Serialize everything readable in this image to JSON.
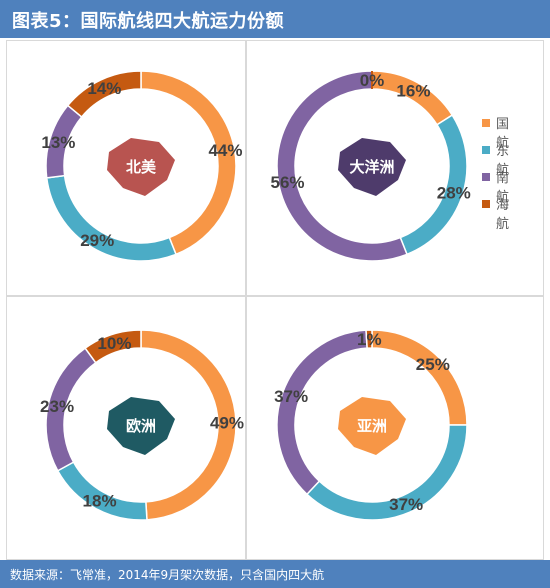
{
  "header": {
    "title": "图表5：国际航线四大航运力份额"
  },
  "footer": {
    "source": "数据来源：飞常准，2014年9月架次数据，只含国内四大航"
  },
  "colors": {
    "国航": "#f79646",
    "东航": "#4bacc6",
    "南航": "#8064a2",
    "海航": "#c55a11",
    "header_bg": "#4f81bd",
    "label_text": "#404040"
  },
  "legend": [
    "国航",
    "东航",
    "南航",
    "海航"
  ],
  "chart_data": [
    {
      "type": "pie",
      "region": "北美",
      "categories": [
        "国航",
        "东航",
        "南航",
        "海航"
      ],
      "values": [
        44,
        29,
        13,
        14
      ],
      "labels": [
        "44%",
        "29%",
        "13%",
        "14%"
      ]
    },
    {
      "type": "pie",
      "region": "大洋洲",
      "categories": [
        "国航",
        "东航",
        "南航",
        "海航"
      ],
      "values": [
        16,
        28,
        56,
        0
      ],
      "labels": [
        "16%",
        "28%",
        "56%",
        "0%"
      ]
    },
    {
      "type": "pie",
      "region": "欧洲",
      "categories": [
        "国航",
        "东航",
        "南航",
        "海航"
      ],
      "values": [
        49,
        18,
        23,
        10
      ],
      "labels": [
        "49%",
        "18%",
        "23%",
        "10%"
      ]
    },
    {
      "type": "pie",
      "region": "亚洲",
      "categories": [
        "国航",
        "东航",
        "南航",
        "海航"
      ],
      "values": [
        25,
        37,
        37,
        1
      ],
      "labels": [
        "25%",
        "37%",
        "37%",
        "1%"
      ]
    }
  ]
}
